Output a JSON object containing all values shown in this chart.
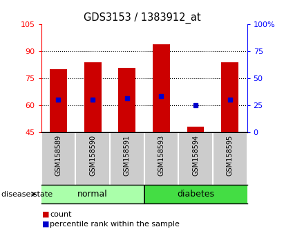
{
  "title": "GDS3153 / 1383912_at",
  "samples": [
    "GSM158589",
    "GSM158590",
    "GSM158591",
    "GSM158593",
    "GSM158594",
    "GSM158595"
  ],
  "groups": [
    "normal",
    "normal",
    "normal",
    "diabetes",
    "diabetes",
    "diabetes"
  ],
  "bar_bottom": 45,
  "bar_tops": [
    80,
    84,
    81,
    94,
    48,
    84
  ],
  "percentile_values": [
    63,
    63,
    64,
    65,
    60,
    63
  ],
  "ylim_left": [
    45,
    105
  ],
  "ylim_right": [
    0,
    100
  ],
  "yticks_left": [
    45,
    60,
    75,
    90,
    105
  ],
  "yticks_right": [
    0,
    25,
    50,
    75,
    100
  ],
  "ytick_labels_left": [
    "45",
    "60",
    "75",
    "90",
    "105"
  ],
  "ytick_labels_right": [
    "0",
    "25",
    "50",
    "75",
    "100%"
  ],
  "bar_color": "#cc0000",
  "percentile_color": "#0000cc",
  "normal_color": "#aaffaa",
  "diabetes_color": "#44dd44",
  "bg_plot": "#ffffff",
  "label_panel_bg": "#cccccc",
  "bar_width": 0.5,
  "group_label": "disease state",
  "legend_items": [
    "count",
    "percentile rank within the sample"
  ],
  "grid_lines": [
    60,
    75,
    90
  ]
}
